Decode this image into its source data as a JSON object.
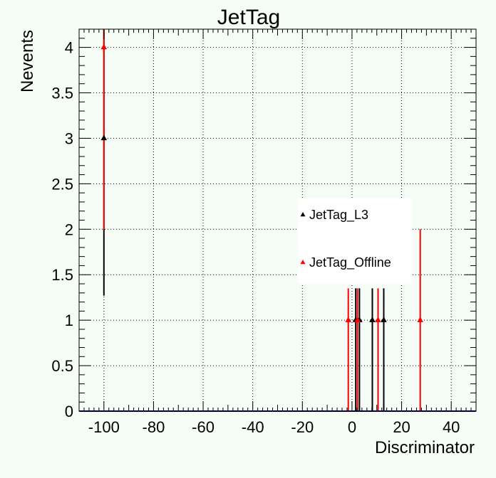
{
  "chart_data": {
    "type": "scatter",
    "title": "JetTag",
    "xlabel": "Discriminator",
    "ylabel": "Nevents",
    "xlim": [
      -110,
      50
    ],
    "ylim": [
      0,
      4.2
    ],
    "xticks": [
      -100,
      -80,
      -60,
      -40,
      -20,
      0,
      20,
      40
    ],
    "yticks": [
      0,
      0.5,
      1,
      1.5,
      2,
      2.5,
      3,
      3.5,
      4
    ],
    "grid": true,
    "legend_position": "center-right",
    "series": [
      {
        "name": "JetTag_L3",
        "color": "#000000",
        "marker": "triangle-up",
        "points": [
          {
            "x": -100,
            "y": 3,
            "ylow": 1.27,
            "yhigh": 4.2
          },
          {
            "x": 1.5,
            "y": 1,
            "ylow": 0,
            "yhigh": 1.35
          },
          {
            "x": 3.0,
            "y": 1,
            "ylow": 0,
            "yhigh": 1.35
          },
          {
            "x": 8.2,
            "y": 1,
            "ylow": 0,
            "yhigh": 1.35
          },
          {
            "x": 12.8,
            "y": 1,
            "ylow": 0,
            "yhigh": 1.35
          }
        ]
      },
      {
        "name": "JetTag_Offline",
        "color": "#ff0000",
        "marker": "triangle-up",
        "points": [
          {
            "x": -100,
            "y": 4,
            "ylow": 2,
            "yhigh": 4.2
          },
          {
            "x": -1.5,
            "y": 1,
            "ylow": 0,
            "yhigh": 1.35
          },
          {
            "x": 2.2,
            "y": 1,
            "ylow": 0,
            "yhigh": 1.35
          },
          {
            "x": 10.5,
            "y": 1,
            "ylow": 0,
            "yhigh": 1.35
          },
          {
            "x": 27.5,
            "y": 1,
            "ylow": 0,
            "yhigh": 2
          }
        ]
      }
    ]
  }
}
